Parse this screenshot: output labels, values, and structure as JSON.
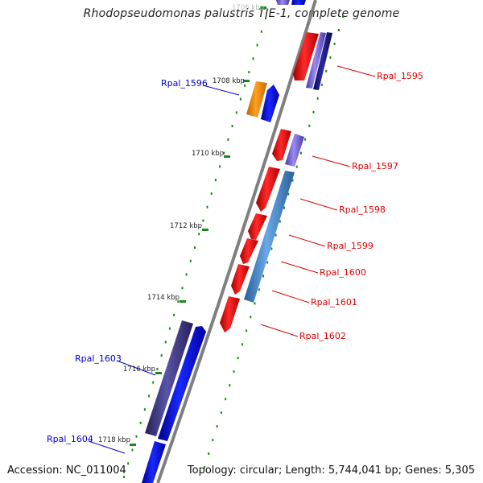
{
  "title": "Rhodopseudomonas palustris TIE-1, complete genome",
  "accession_text": "Accession: NC_011004",
  "topology_text": "Topology: circular; Length: 5,744,041 bp; Genes: 5,305",
  "colors": {
    "backbone": "#8a8a8a",
    "tick": "#1a8a1a",
    "forward_label": "#0000cc",
    "reverse_label": "#e00000",
    "gene_red": "#ee1111",
    "gene_blue": "#0a14f0",
    "gene_orange": "#ff8c00",
    "gene_steelblue": "#4a8ad0",
    "gene_purple": "#7a6ad8",
    "gene_navy": "#1a1a8a",
    "gene_slate": "#3f3a86"
  },
  "kbp_labels": [
    {
      "text": "1706 kbp"
    },
    {
      "text": "1708 kbp"
    },
    {
      "text": "1710 kbp"
    },
    {
      "text": "1712 kbp"
    },
    {
      "text": "1714 kbp"
    },
    {
      "text": "1716 kbp"
    },
    {
      "text": "1718 kbp"
    }
  ],
  "gene_labels": [
    {
      "text": "Rpal_1595",
      "strand": "reverse"
    },
    {
      "text": "Rpal_1596",
      "strand": "forward"
    },
    {
      "text": "Rpal_1597",
      "strand": "reverse"
    },
    {
      "text": "Rpal_1598",
      "strand": "reverse"
    },
    {
      "text": "Rpal_1599",
      "strand": "reverse"
    },
    {
      "text": "Rpal_1600",
      "strand": "reverse"
    },
    {
      "text": "Rpal_1601",
      "strand": "reverse"
    },
    {
      "text": "Rpal_1602",
      "strand": "reverse"
    },
    {
      "text": "Rpal_1603",
      "strand": "forward"
    },
    {
      "text": "Rpal_1604",
      "strand": "forward"
    }
  ]
}
